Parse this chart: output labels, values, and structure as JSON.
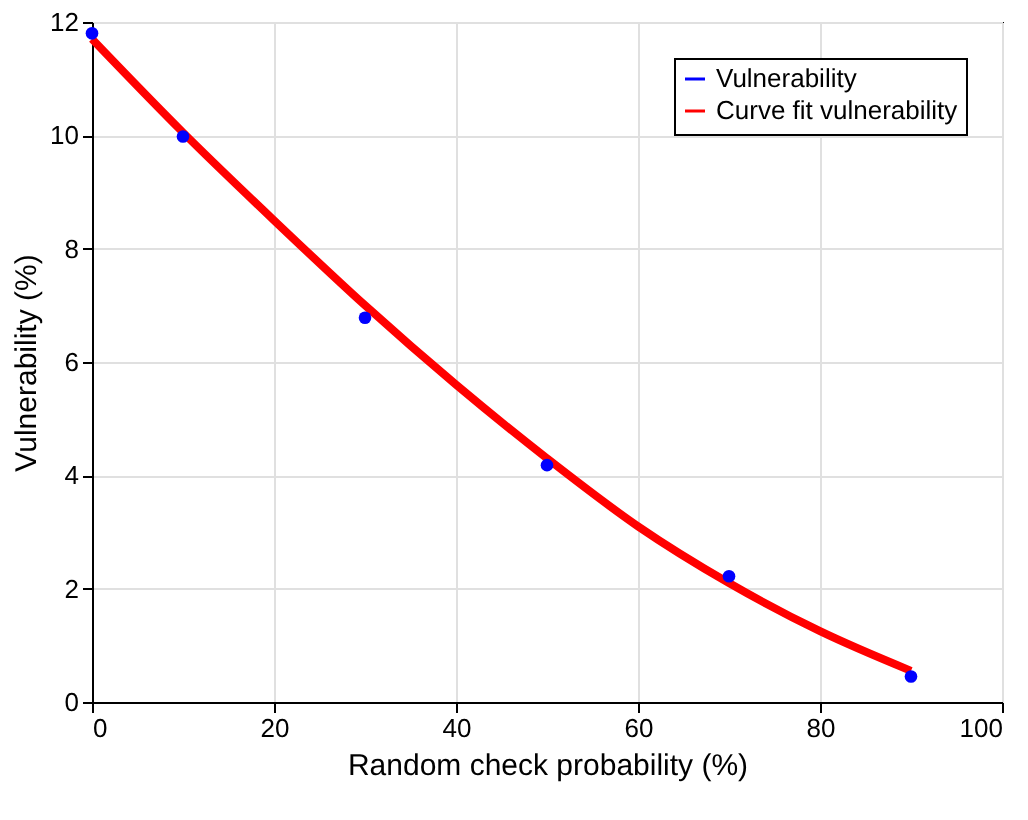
{
  "chart_data": {
    "type": "scatter",
    "xlabel": "Random check probability (%)",
    "ylabel": "Vulnerability (%)",
    "xlim": [
      0,
      100
    ],
    "xticks": [
      0,
      20,
      40,
      60,
      80,
      100
    ],
    "ylim": [
      0,
      12
    ],
    "yticks": [
      0,
      2,
      4,
      6,
      8,
      10,
      12
    ],
    "grid": true,
    "legend": "top right",
    "series": [
      {
        "name": "Vulnerability",
        "color": "#0000ff",
        "x": [
          0,
          10,
          30,
          50,
          70,
          90
        ],
        "values": [
          11.8,
          9.98,
          6.78,
          4.18,
          2.22,
          0.45
        ]
      },
      {
        "name": "Curve fit vulnerability",
        "color": "#ff0000",
        "type": "line",
        "x": [
          0,
          10,
          20,
          30,
          40,
          50,
          60,
          70,
          80,
          90
        ],
        "values": [
          11.7,
          10.05,
          8.5,
          7.0,
          5.6,
          4.3,
          3.1,
          2.1,
          1.25,
          0.55
        ]
      }
    ]
  }
}
